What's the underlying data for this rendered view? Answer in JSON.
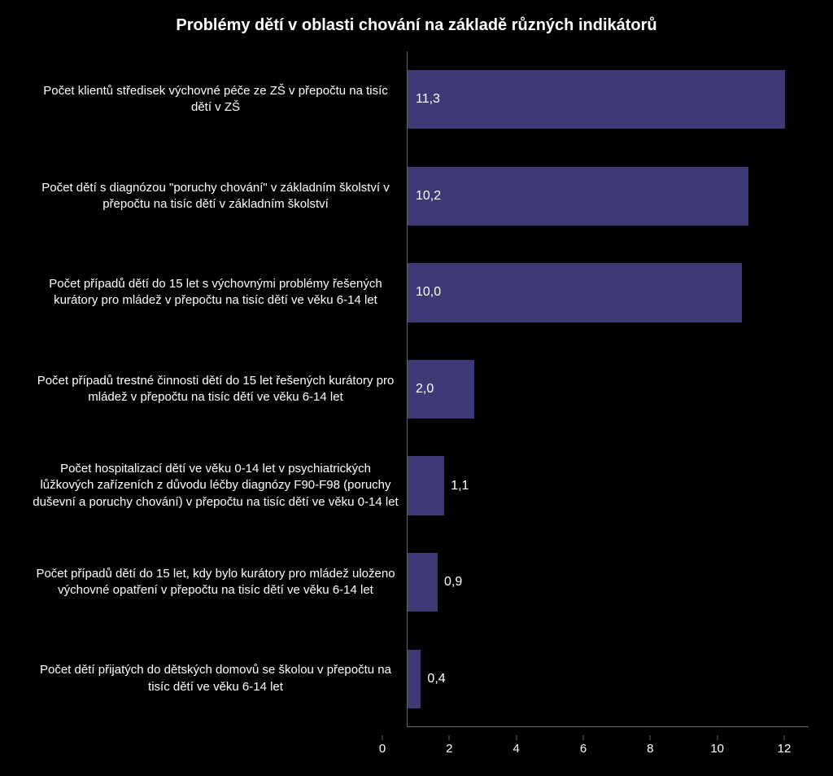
{
  "chart": {
    "type": "bar-horizontal",
    "title": "Problémy dětí v oblasti chování na základě různých indikátorů",
    "background_color": "#000000",
    "bar_color": "#3d3a76",
    "text_color": "#ffffff",
    "axis_color": "#666666",
    "title_fontsize": 20,
    "label_fontsize": 15,
    "value_fontsize": 16,
    "tick_fontsize": 15,
    "bar_height_ratio": 0.61,
    "xlim": [
      0,
      12
    ],
    "xtick_step": 2,
    "xticks": [
      "0",
      "2",
      "4",
      "6",
      "8",
      "10",
      "12"
    ],
    "categories": [
      "Počet klientů středisek výchovné péče ze ZŠ v přepočtu na tisíc dětí v ZŠ",
      "Počet dětí s diagnózou \"poruchy chování\" v základním školství v přepočtu na tisíc dětí v základním školství",
      "Počet případů dětí do 15 let s výchovnými problémy řešených kurátory pro mládež v přepočtu na tisíc dětí ve věku 6-14 let",
      "Počet případů trestné činnosti dětí do 15 let řešených kurátory pro mládež v přepočtu na tisíc dětí ve věku 6-14 let",
      "Počet hospitalizací dětí ve věku 0-14 let v psychiatrických lůžkových zařízeních z důvodu léčby diagnózy F90-F98 (poruchy duševní a poruchy chování) v přepočtu na tisíc dětí ve věku 0-14 let",
      "Počet případů dětí do 15 let, kdy bylo kurátory pro mládež uloženo výchovné opatření v přepočtu na tisíc dětí ve věku 6-14 let",
      "Počet dětí přijatých do dětských domovů se školou v přepočtu na tisíc dětí ve věku 6-14 let"
    ],
    "values": [
      11.3,
      10.2,
      10.0,
      2.0,
      1.1,
      0.9,
      0.4
    ],
    "value_labels": [
      "11,3",
      "10,2",
      "10,0",
      "2,0",
      "1,1",
      "0,9",
      "0,4"
    ],
    "value_label_position": [
      "inside",
      "inside",
      "inside",
      "inside",
      "outside",
      "outside",
      "outside"
    ]
  }
}
